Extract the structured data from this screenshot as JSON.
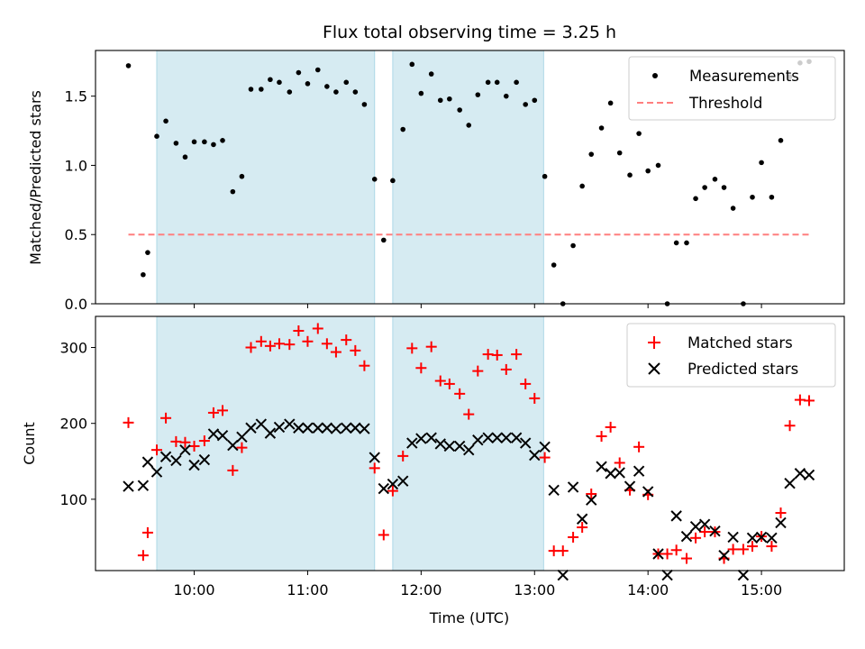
{
  "chart_data": {
    "title": "Flux total observing time = 3.25 h",
    "xlabel": "Time (UTC)",
    "x_ticks": [
      {
        "value": 10,
        "label": "10:00"
      },
      {
        "value": 11,
        "label": "11:00"
      },
      {
        "value": 12,
        "label": "12:00"
      },
      {
        "value": 13,
        "label": "13:00"
      },
      {
        "value": 14,
        "label": "14:00"
      },
      {
        "value": 15,
        "label": "15:00"
      }
    ],
    "x_unit": "hours UTC",
    "xlim": [
      9.13,
      15.73
    ],
    "shaded_intervals": [
      [
        9.67,
        11.59
      ],
      [
        11.75,
        13.08
      ]
    ],
    "shade_color": "#add8e6",
    "panels": [
      {
        "type": "scatter",
        "ylabel": "Matched/Predicted stars",
        "ylim": [
          0,
          1.83
        ],
        "y_ticks": [
          "0.0",
          "0.5",
          "1.0",
          "1.5"
        ],
        "legend_position": "upper-right",
        "series": [
          {
            "name": "Measurements",
            "marker": "dot",
            "color": "#000000",
            "points": [
              [
                9.42,
                1.72
              ],
              [
                9.55,
                0.21
              ],
              [
                9.59,
                0.37
              ],
              [
                9.67,
                1.21
              ],
              [
                9.75,
                1.32
              ],
              [
                9.84,
                1.16
              ],
              [
                9.92,
                1.06
              ],
              [
                10.0,
                1.17
              ],
              [
                10.09,
                1.17
              ],
              [
                10.17,
                1.15
              ],
              [
                10.25,
                1.18
              ],
              [
                10.34,
                0.81
              ],
              [
                10.42,
                0.92
              ],
              [
                10.5,
                1.55
              ],
              [
                10.59,
                1.55
              ],
              [
                10.67,
                1.62
              ],
              [
                10.75,
                1.6
              ],
              [
                10.84,
                1.53
              ],
              [
                10.92,
                1.67
              ],
              [
                11.0,
                1.59
              ],
              [
                11.09,
                1.69
              ],
              [
                11.17,
                1.57
              ],
              [
                11.25,
                1.53
              ],
              [
                11.34,
                1.6
              ],
              [
                11.42,
                1.53
              ],
              [
                11.5,
                1.44
              ],
              [
                11.59,
                0.9
              ],
              [
                11.67,
                0.46
              ],
              [
                11.75,
                0.89
              ],
              [
                11.84,
                1.26
              ],
              [
                11.92,
                1.73
              ],
              [
                12.0,
                1.52
              ],
              [
                12.09,
                1.66
              ],
              [
                12.17,
                1.47
              ],
              [
                12.25,
                1.48
              ],
              [
                12.34,
                1.4
              ],
              [
                12.42,
                1.29
              ],
              [
                12.5,
                1.51
              ],
              [
                12.59,
                1.6
              ],
              [
                12.67,
                1.6
              ],
              [
                12.75,
                1.5
              ],
              [
                12.84,
                1.6
              ],
              [
                12.92,
                1.44
              ],
              [
                13.0,
                1.47
              ],
              [
                13.09,
                0.92
              ],
              [
                13.17,
                0.28
              ],
              [
                13.25,
                0.0
              ],
              [
                13.34,
                0.42
              ],
              [
                13.42,
                0.85
              ],
              [
                13.5,
                1.08
              ],
              [
                13.59,
                1.27
              ],
              [
                13.67,
                1.45
              ],
              [
                13.75,
                1.09
              ],
              [
                13.84,
                0.93
              ],
              [
                13.92,
                1.23
              ],
              [
                14.0,
                0.96
              ],
              [
                14.09,
                1.0
              ],
              [
                14.17,
                0.0
              ],
              [
                14.25,
                0.44
              ],
              [
                14.34,
                0.44
              ],
              [
                14.42,
                0.76
              ],
              [
                14.5,
                0.84
              ],
              [
                14.59,
                0.9
              ],
              [
                14.67,
                0.84
              ],
              [
                14.75,
                0.69
              ],
              [
                14.84,
                0.0
              ],
              [
                14.92,
                0.77
              ],
              [
                15.0,
                1.02
              ],
              [
                15.09,
                0.77
              ],
              [
                15.17,
                1.18
              ],
              [
                15.25,
                1.64
              ],
              [
                15.34,
                1.74
              ],
              [
                15.42,
                1.75
              ]
            ]
          },
          {
            "name": "Threshold",
            "marker": "dashed-line",
            "color": "#ff7f7f",
            "points": [
              [
                9.42,
                0.5
              ],
              [
                15.42,
                0.5
              ]
            ]
          }
        ]
      },
      {
        "type": "scatter",
        "ylabel": "Count",
        "ylim": [
          6,
          341
        ],
        "y_ticks": [
          "100",
          "200",
          "300"
        ],
        "legend_position": "upper-right",
        "series": [
          {
            "name": "Matched stars",
            "marker": "plus",
            "color": "#ff0000",
            "points": [
              [
                9.42,
                201
              ],
              [
                9.55,
                26
              ],
              [
                9.59,
                56
              ],
              [
                9.67,
                165
              ],
              [
                9.75,
                207
              ],
              [
                9.84,
                176
              ],
              [
                9.92,
                175
              ],
              [
                10.0,
                170
              ],
              [
                10.09,
                177
              ],
              [
                10.17,
                214
              ],
              [
                10.25,
                217
              ],
              [
                10.34,
                138
              ],
              [
                10.42,
                168
              ],
              [
                10.5,
                300
              ],
              [
                10.59,
                308
              ],
              [
                10.67,
                302
              ],
              [
                10.75,
                305
              ],
              [
                10.84,
                304
              ],
              [
                10.92,
                322
              ],
              [
                11.0,
                308
              ],
              [
                11.09,
                325
              ],
              [
                11.17,
                305
              ],
              [
                11.25,
                294
              ],
              [
                11.34,
                310
              ],
              [
                11.42,
                296
              ],
              [
                11.5,
                276
              ],
              [
                11.59,
                141
              ],
              [
                11.67,
                53
              ],
              [
                11.75,
                111
              ],
              [
                11.84,
                157
              ],
              [
                11.92,
                299
              ],
              [
                12.0,
                273
              ],
              [
                12.09,
                301
              ],
              [
                12.17,
                256
              ],
              [
                12.25,
                252
              ],
              [
                12.34,
                239
              ],
              [
                12.42,
                212
              ],
              [
                12.5,
                269
              ],
              [
                12.59,
                291
              ],
              [
                12.67,
                290
              ],
              [
                12.75,
                271
              ],
              [
                12.84,
                291
              ],
              [
                12.92,
                252
              ],
              [
                13.0,
                233
              ],
              [
                13.09,
                155
              ],
              [
                13.17,
                32
              ],
              [
                13.25,
                32
              ],
              [
                13.34,
                50
              ],
              [
                13.42,
                63
              ],
              [
                13.5,
                107
              ],
              [
                13.59,
                183
              ],
              [
                13.67,
                195
              ],
              [
                13.75,
                148
              ],
              [
                13.84,
                112
              ],
              [
                13.92,
                169
              ],
              [
                14.0,
                106
              ],
              [
                14.09,
                28
              ],
              [
                14.17,
                28
              ],
              [
                14.25,
                33
              ],
              [
                14.34,
                22
              ],
              [
                14.42,
                49
              ],
              [
                14.5,
                57
              ],
              [
                14.59,
                57
              ],
              [
                14.67,
                22
              ],
              [
                14.75,
                34
              ],
              [
                14.84,
                34
              ],
              [
                14.92,
                38
              ],
              [
                15.0,
                51
              ],
              [
                15.09,
                38
              ],
              [
                15.17,
                82
              ],
              [
                15.25,
                197
              ],
              [
                15.34,
                231
              ],
              [
                15.42,
                230
              ]
            ]
          },
          {
            "name": "Predicted stars",
            "marker": "x",
            "color": "#000000",
            "points": [
              [
                9.42,
                117
              ],
              [
                9.55,
                118
              ],
              [
                9.59,
                149
              ],
              [
                9.67,
                136
              ],
              [
                9.75,
                156
              ],
              [
                9.84,
                151
              ],
              [
                9.92,
                165
              ],
              [
                10.0,
                145
              ],
              [
                10.09,
                152
              ],
              [
                10.17,
                186
              ],
              [
                10.25,
                184
              ],
              [
                10.34,
                171
              ],
              [
                10.42,
                182
              ],
              [
                10.5,
                194
              ],
              [
                10.59,
                199
              ],
              [
                10.67,
                187
              ],
              [
                10.75,
                195
              ],
              [
                10.84,
                199
              ],
              [
                10.92,
                194
              ],
              [
                11.0,
                194
              ],
              [
                11.09,
                194
              ],
              [
                11.17,
                194
              ],
              [
                11.25,
                193
              ],
              [
                11.34,
                194
              ],
              [
                11.42,
                194
              ],
              [
                11.5,
                193
              ],
              [
                11.59,
                155
              ],
              [
                11.67,
                114
              ],
              [
                11.75,
                120
              ],
              [
                11.84,
                124
              ],
              [
                11.92,
                174
              ],
              [
                12.0,
                180
              ],
              [
                12.09,
                181
              ],
              [
                12.17,
                173
              ],
              [
                12.25,
                170
              ],
              [
                12.34,
                170
              ],
              [
                12.42,
                165
              ],
              [
                12.5,
                178
              ],
              [
                12.59,
                181
              ],
              [
                12.67,
                181
              ],
              [
                12.75,
                181
              ],
              [
                12.84,
                181
              ],
              [
                12.92,
                174
              ],
              [
                13.0,
                158
              ],
              [
                13.09,
                169
              ],
              [
                13.17,
                112
              ],
              [
                13.25,
                0
              ],
              [
                13.34,
                116
              ],
              [
                13.42,
                74
              ],
              [
                13.5,
                99
              ],
              [
                13.59,
                143
              ],
              [
                13.67,
                134
              ],
              [
                13.75,
                135
              ],
              [
                13.84,
                117
              ],
              [
                13.92,
                137
              ],
              [
                14.0,
                110
              ],
              [
                14.09,
                28
              ],
              [
                14.17,
                0
              ],
              [
                14.25,
                78
              ],
              [
                14.34,
                51
              ],
              [
                14.42,
                64
              ],
              [
                14.5,
                67
              ],
              [
                14.59,
                58
              ],
              [
                14.67,
                26
              ],
              [
                14.75,
                50
              ],
              [
                14.84,
                0
              ],
              [
                14.92,
                49
              ],
              [
                15.0,
                50
              ],
              [
                15.09,
                49
              ],
              [
                15.17,
                69
              ],
              [
                15.25,
                121
              ],
              [
                15.34,
                134
              ],
              [
                15.42,
                132
              ]
            ]
          }
        ]
      }
    ]
  }
}
